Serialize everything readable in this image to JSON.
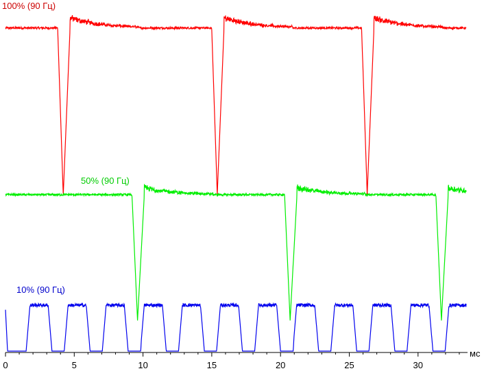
{
  "chart_data": {
    "type": "line",
    "title": "",
    "xlabel": "",
    "xunit": "мс",
    "ylabel": "",
    "xlim": [
      0,
      33.5
    ],
    "ylim": [
      0,
      1
    ],
    "x_ticks": [
      0,
      5,
      10,
      15,
      20,
      25,
      30
    ],
    "x_minor_step": 1,
    "grid": false,
    "series": [
      {
        "name": "100% (90 Гц)",
        "color": "#ff0000",
        "label_color": "#cc0000",
        "level_high": 0.95,
        "level_low": 0.46,
        "dip_times": [
          4.2,
          15.4,
          26.3
        ],
        "dip_width": 0.9,
        "overshoot": 0.03
      },
      {
        "name": "50% (90 Гц)",
        "color": "#00ee00",
        "label_color": "#00cc00",
        "level_high": 0.46,
        "level_low": 0.09,
        "dip_times": [
          9.6,
          20.7,
          31.7
        ],
        "dip_width": 0.9,
        "overshoot": 0.02
      },
      {
        "name": "10% (90 Гц)",
        "color": "#0000ee",
        "label_color": "#0000cc",
        "level_high": 0.135,
        "level_low": 0.0,
        "pulse_period": 2.77,
        "pulse_start": 1.5,
        "pulse_on": 1.6,
        "dip_times": [
          9.6,
          20.7,
          31.7
        ]
      }
    ]
  }
}
